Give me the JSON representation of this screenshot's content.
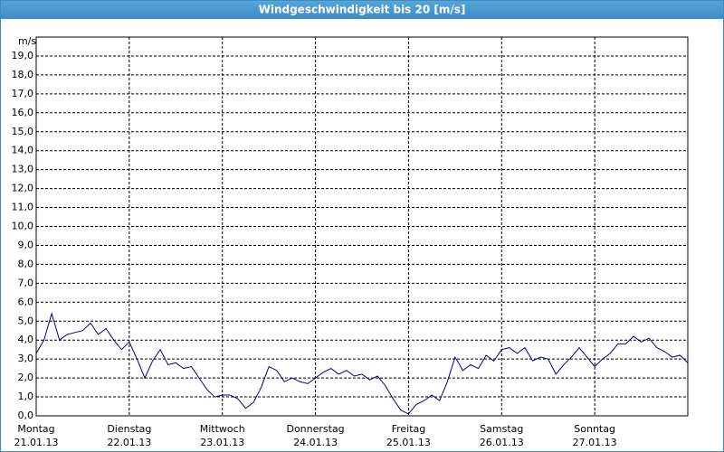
{
  "chart_data": {
    "type": "line",
    "title": "Windgeschwindigkeit bis 20 [m/s]",
    "y_unit": "m/s",
    "x": [
      0,
      2,
      4,
      6,
      8,
      10,
      12,
      14,
      16,
      18,
      20,
      22,
      24,
      26,
      28,
      30,
      32,
      34,
      36,
      38,
      40,
      42,
      44,
      46,
      48,
      50,
      52,
      54,
      56,
      58,
      60,
      62,
      64,
      66,
      68,
      70,
      72,
      74,
      76,
      78,
      80,
      82,
      84,
      86,
      88,
      90,
      92,
      94,
      96,
      98,
      100,
      102,
      104,
      106,
      108,
      110,
      112,
      114,
      116,
      118,
      120,
      122,
      124,
      126,
      128,
      130,
      132,
      134,
      136,
      138,
      140,
      142,
      144,
      146,
      148,
      150,
      152,
      154,
      156,
      158,
      160,
      162,
      164,
      166,
      168
    ],
    "series": [
      {
        "name": "Windgeschwindigkeit",
        "color": "#00008b",
        "values": [
          3.3,
          4.0,
          5.4,
          4.0,
          4.3,
          4.4,
          4.5,
          4.9,
          4.3,
          4.6,
          4.0,
          3.5,
          3.9,
          3.0,
          2.0,
          2.9,
          3.5,
          2.7,
          2.8,
          2.5,
          2.6,
          2.0,
          1.4,
          1.0,
          1.1,
          1.1,
          0.9,
          0.4,
          0.7,
          1.5,
          2.6,
          2.4,
          1.8,
          2.0,
          1.8,
          1.7,
          2.0,
          2.3,
          2.5,
          2.2,
          2.4,
          2.1,
          2.2,
          1.9,
          2.1,
          1.6,
          0.9,
          0.3,
          0.1,
          0.6,
          0.8,
          1.1,
          0.8,
          1.8,
          3.1,
          2.4,
          2.7,
          2.5,
          3.2,
          2.9,
          3.5,
          3.6,
          3.3,
          3.6,
          2.9,
          3.1,
          3.0,
          2.2,
          2.7,
          3.1,
          3.6,
          3.1,
          2.6,
          3.0,
          3.3,
          3.8,
          3.8,
          4.2,
          3.9,
          4.1,
          3.6,
          3.4,
          3.1,
          3.2,
          2.8
        ]
      }
    ],
    "xlim": [
      0,
      168
    ],
    "xticks": [
      {
        "value": 0,
        "label": "Montag"
      },
      {
        "value": 24,
        "label": "Dienstag"
      },
      {
        "value": 48,
        "label": "Mittwoch"
      },
      {
        "value": 72,
        "label": "Donnerstag"
      },
      {
        "value": 96,
        "label": "Freitag"
      },
      {
        "value": 120,
        "label": "Samstag"
      },
      {
        "value": 144,
        "label": "Sonntag"
      }
    ],
    "xtick_dates": [
      "21.01.13",
      "22.01.13",
      "23.01.13",
      "24.01.13",
      "25.01.13",
      "26.01.13",
      "27.01.13"
    ],
    "ylim": [
      0,
      20
    ],
    "yticks": [
      {
        "value": 0,
        "label": "0,0"
      },
      {
        "value": 1,
        "label": "1,0"
      },
      {
        "value": 2,
        "label": "2,0"
      },
      {
        "value": 3,
        "label": "3,0"
      },
      {
        "value": 4,
        "label": "4,0"
      },
      {
        "value": 5,
        "label": "5,0"
      },
      {
        "value": 6,
        "label": "6,0"
      },
      {
        "value": 7,
        "label": "7,0"
      },
      {
        "value": 8,
        "label": "8,0"
      },
      {
        "value": 9,
        "label": "9,0"
      },
      {
        "value": 10,
        "label": "10,0"
      },
      {
        "value": 11,
        "label": "11,0"
      },
      {
        "value": 12,
        "label": "12,0"
      },
      {
        "value": 13,
        "label": "13,0"
      },
      {
        "value": 14,
        "label": "14,0"
      },
      {
        "value": 15,
        "label": "15,0"
      },
      {
        "value": 16,
        "label": "16,0"
      },
      {
        "value": 17,
        "label": "17,0"
      },
      {
        "value": 18,
        "label": "18,0"
      },
      {
        "value": 19,
        "label": "19,0"
      }
    ],
    "grid": true
  }
}
